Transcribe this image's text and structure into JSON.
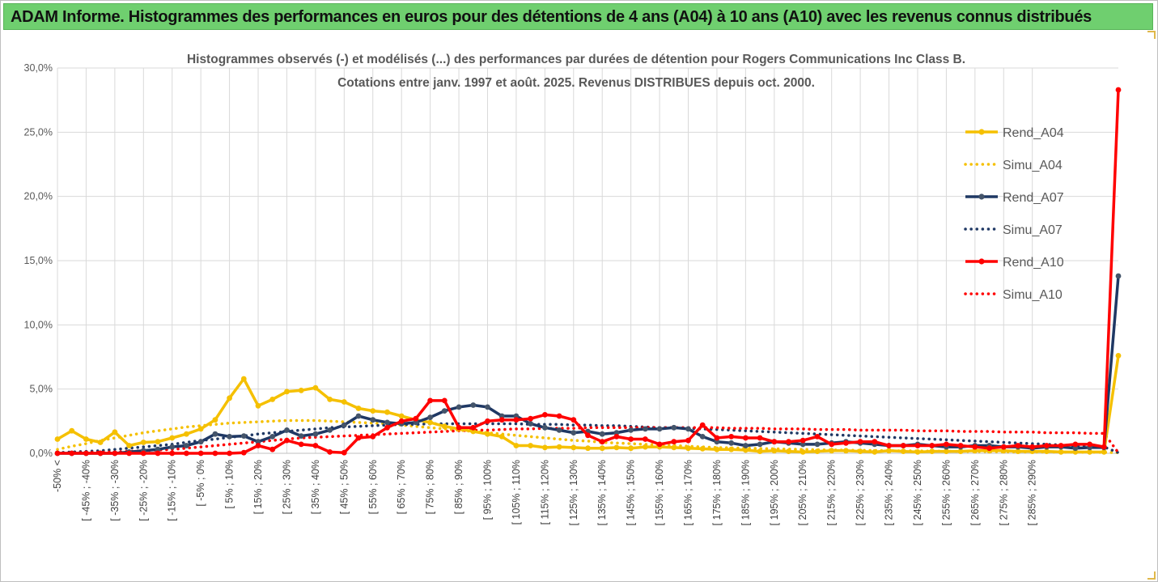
{
  "header": {
    "title": "ADAM Informe. Histogrammes des performances en euros pour des détentions de 4 ans (A04) à 10 ans (A10) avec les revenus connus distribués"
  },
  "chart_data": {
    "type": "line",
    "title_line1": "Histogrammes observés (-) et modélisés (...) des performances par durées de détention pour Rogers Communications Inc Class B.",
    "title_line2": "Cotations entre janv. 1997 et août. 2025. Revenus DISTRIBUES depuis oct. 2000.",
    "ylim": [
      0,
      30
    ],
    "yticks": [
      0,
      5,
      10,
      15,
      20,
      25,
      30
    ],
    "ytick_labels": [
      "0,0%",
      "5,0%",
      "10,0%",
      "15,0%",
      "20,0%",
      "25,0%",
      "30,0%"
    ],
    "grid": true,
    "legend_position": "top-right",
    "x_tick_labels": [
      "-50% <",
      "[ -45% ; -40%",
      "[ -35% ; -30%",
      "[ -25% ; -20%",
      "[ -15% ; -10%",
      "[ -5% ; 0%",
      "[ 5% ; 10%",
      "[ 15% ; 20%",
      "[ 25% ; 30%",
      "[ 35% ; 40%",
      "[ 45% ; 50%",
      "[ 55% ; 60%",
      "[ 65% ; 70%",
      "[ 75% ; 80%",
      "[ 85% ; 90%",
      "[ 95% ; 100%",
      "[ 105% ; 110%",
      "[ 115% ; 120%",
      "[ 125% ; 130%",
      "[ 135% ; 140%",
      "[ 145% ; 150%",
      "[ 155% ; 160%",
      "[ 165% ; 170%",
      "[ 175% ; 180%",
      "[ 185% ; 190%",
      "[ 195% ; 200%",
      "[ 205% ; 210%",
      "[ 215% ; 220%",
      "[ 225% ; 230%",
      "[ 235% ; 240%",
      "[ 245% ; 250%",
      "[ 255% ; 260%",
      "[ 265% ; 270%",
      "[ 275% ; 280%",
      "[ 285% ; 290%"
    ],
    "series": [
      {
        "name": "Rend_A04",
        "style": "solid",
        "color": "#f5c000",
        "values": [
          1.1,
          1.75,
          1.1,
          0.85,
          1.65,
          0.6,
          0.85,
          0.9,
          1.2,
          1.5,
          1.9,
          2.6,
          4.3,
          5.8,
          3.7,
          4.2,
          4.8,
          4.9,
          5.1,
          4.2,
          4.0,
          3.5,
          3.3,
          3.2,
          2.9,
          2.6,
          2.4,
          2.1,
          1.9,
          1.7,
          1.5,
          1.3,
          0.6,
          0.6,
          0.45,
          0.5,
          0.45,
          0.4,
          0.4,
          0.45,
          0.4,
          0.5,
          0.5,
          0.45,
          0.4,
          0.35,
          0.3,
          0.3,
          0.25,
          0.15,
          0.2,
          0.15,
          0.1,
          0.15,
          0.2,
          0.2,
          0.15,
          0.1,
          0.2,
          0.15,
          0.1,
          0.15,
          0.15,
          0.15,
          0.2,
          0.2,
          0.2,
          0.15,
          0.15,
          0.15,
          0.1,
          0.1,
          0.1,
          0.1,
          7.6
        ]
      },
      {
        "name": "Simu_A04",
        "style": "dotted",
        "color": "#f5c000",
        "values": [
          0.3,
          0.55,
          0.75,
          1.0,
          1.2,
          1.4,
          1.6,
          1.75,
          1.9,
          2.05,
          2.15,
          2.25,
          2.35,
          2.4,
          2.45,
          2.5,
          2.55,
          2.55,
          2.55,
          2.5,
          2.45,
          2.4,
          2.35,
          2.3,
          2.2,
          2.1,
          2.0,
          1.9,
          1.8,
          1.7,
          1.6,
          1.5,
          1.4,
          1.3,
          1.2,
          1.1,
          1.0,
          0.95,
          0.85,
          0.8,
          0.75,
          0.7,
          0.65,
          0.6,
          0.55,
          0.5,
          0.45,
          0.42,
          0.4,
          0.37,
          0.35,
          0.32,
          0.3,
          0.28,
          0.26,
          0.25,
          0.23,
          0.22,
          0.2,
          0.19,
          0.18,
          0.17,
          0.16,
          0.15,
          0.14,
          0.13,
          0.12,
          0.11,
          0.1,
          0.1,
          0.09,
          0.08,
          0.08,
          0.07,
          0.05
        ]
      },
      {
        "name": "Rend_A07",
        "style": "solid",
        "color": "#1f3864",
        "values": [
          0,
          0,
          0,
          0,
          0,
          0.1,
          0.2,
          0.3,
          0.5,
          0.6,
          0.9,
          1.5,
          1.3,
          1.35,
          0.9,
          1.3,
          1.8,
          1.35,
          1.5,
          1.8,
          2.2,
          2.9,
          2.6,
          2.4,
          2.3,
          2.4,
          2.8,
          3.3,
          3.6,
          3.75,
          3.6,
          2.9,
          2.9,
          2.3,
          2.0,
          1.8,
          1.6,
          1.7,
          1.5,
          1.6,
          1.8,
          1.9,
          1.9,
          2.0,
          1.9,
          1.3,
          0.9,
          0.8,
          0.6,
          0.7,
          0.9,
          0.8,
          0.7,
          0.7,
          0.8,
          0.9,
          0.8,
          0.7,
          0.6,
          0.6,
          0.7,
          0.6,
          0.5,
          0.5,
          0.6,
          0.6,
          0.5,
          0.5,
          0.4,
          0.5,
          0.5,
          0.4,
          0.45,
          0.45,
          13.8
        ]
      },
      {
        "name": "Simu_A07",
        "style": "dotted",
        "color": "#1f3864",
        "values": [
          0.05,
          0.1,
          0.15,
          0.2,
          0.3,
          0.4,
          0.5,
          0.6,
          0.7,
          0.85,
          1.0,
          1.1,
          1.25,
          1.35,
          1.5,
          1.6,
          1.7,
          1.8,
          1.9,
          2.0,
          2.05,
          2.1,
          2.15,
          2.2,
          2.25,
          2.25,
          2.3,
          2.3,
          2.3,
          2.3,
          2.3,
          2.3,
          2.3,
          2.25,
          2.25,
          2.25,
          2.2,
          2.2,
          2.15,
          2.15,
          2.1,
          2.05,
          2.0,
          2.0,
          1.95,
          1.9,
          1.85,
          1.8,
          1.75,
          1.7,
          1.65,
          1.6,
          1.55,
          1.5,
          1.45,
          1.4,
          1.35,
          1.3,
          1.25,
          1.2,
          1.15,
          1.1,
          1.05,
          1.0,
          0.95,
          0.9,
          0.85,
          0.8,
          0.75,
          0.7,
          0.65,
          0.6,
          0.55,
          0.5,
          0.05
        ]
      },
      {
        "name": "Rend_A10",
        "style": "solid",
        "color": "#ff0000",
        "values": [
          0,
          0,
          0,
          0,
          0,
          0,
          0,
          0,
          0,
          0,
          0,
          0,
          0,
          0.05,
          0.6,
          0.3,
          1.0,
          0.7,
          0.6,
          0.1,
          0.05,
          1.2,
          1.3,
          2.0,
          2.5,
          2.7,
          4.1,
          4.1,
          2.0,
          2.0,
          2.5,
          2.6,
          2.6,
          2.7,
          3.0,
          2.9,
          2.6,
          1.4,
          0.9,
          1.3,
          1.1,
          1.1,
          0.7,
          0.9,
          1.0,
          2.2,
          1.2,
          1.3,
          1.2,
          1.2,
          0.9,
          0.9,
          1.0,
          1.3,
          0.7,
          0.8,
          0.9,
          0.9,
          0.6,
          0.6,
          0.6,
          0.6,
          0.7,
          0.6,
          0.5,
          0.4,
          0.5,
          0.6,
          0.5,
          0.6,
          0.6,
          0.7,
          0.7,
          0.5,
          28.3
        ]
      },
      {
        "name": "Simu_A10",
        "style": "dotted",
        "color": "#ff0000",
        "values": [
          0.02,
          0.04,
          0.06,
          0.08,
          0.1,
          0.15,
          0.2,
          0.25,
          0.3,
          0.4,
          0.5,
          0.6,
          0.7,
          0.8,
          0.9,
          1.0,
          1.1,
          1.2,
          1.25,
          1.3,
          1.35,
          1.4,
          1.45,
          1.5,
          1.55,
          1.6,
          1.65,
          1.7,
          1.75,
          1.8,
          1.8,
          1.85,
          1.9,
          1.9,
          1.95,
          1.95,
          1.95,
          2.0,
          2.0,
          2.0,
          2.0,
          2.0,
          2.0,
          2.0,
          2.0,
          2.0,
          2.0,
          1.95,
          1.95,
          1.95,
          1.9,
          1.9,
          1.9,
          1.85,
          1.85,
          1.85,
          1.8,
          1.8,
          1.8,
          1.8,
          1.75,
          1.75,
          1.75,
          1.7,
          1.7,
          1.7,
          1.65,
          1.65,
          1.65,
          1.6,
          1.6,
          1.6,
          1.55,
          1.55,
          0.05
        ]
      }
    ]
  }
}
